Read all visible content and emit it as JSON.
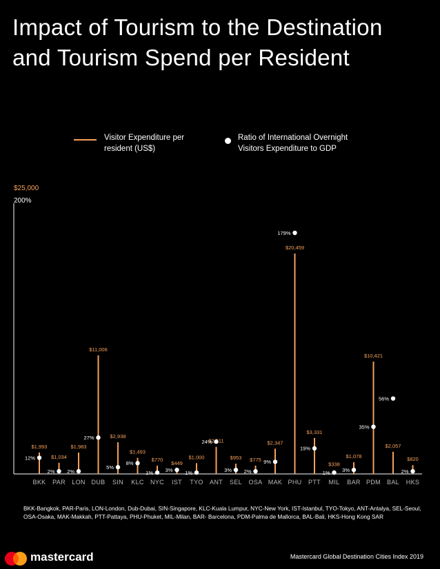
{
  "title": "Impact of Tourism to the Destination and Tourism Spend per Resident",
  "legend": {
    "line_label": "Visitor Expenditure per resident (US$)",
    "dot_label": "Ratio of International Overnight Visitors Expenditure to GDP"
  },
  "axis": {
    "money_max_label": "$25,000",
    "pct_max_label": "200%"
  },
  "colors": {
    "background": "#000000",
    "line": "#f7a15a",
    "dot": "#ffffff",
    "text": "#ffffff"
  },
  "chart_data": {
    "type": "bar",
    "title": "Impact of Tourism to the Destination and Tourism Spend per Resident",
    "categories": [
      "BKK",
      "PAR",
      "LON",
      "DUB",
      "SIN",
      "KLC",
      "NYC",
      "IST",
      "TYO",
      "ANT",
      "SEL",
      "OSA",
      "MAK",
      "PHU",
      "PTT",
      "MIL",
      "BAR",
      "PDM",
      "BAL",
      "HKS"
    ],
    "series": [
      {
        "name": "Visitor Expenditure per resident (US$)",
        "values": [
          1993,
          1034,
          1983,
          11006,
          2938,
          1493,
          770,
          449,
          1000,
          2511,
          953,
          775,
          2347,
          20459,
          3331,
          338,
          1078,
          10421,
          2057,
          820
        ],
        "labels": [
          "$1,993",
          "$1,034",
          "$1,983",
          "$11,006",
          "$2,938",
          "$1,493",
          "$770",
          "$449",
          "$1,000",
          "$2,511",
          "$953",
          "$775",
          "$2,347",
          "$20,459",
          "$3,331",
          "$338",
          "$1,078",
          "$10,421",
          "$2,057",
          "$820"
        ],
        "axis_max": 25000
      },
      {
        "name": "Ratio of International Overnight Visitors Expenditure to GDP",
        "values": [
          12,
          2,
          2,
          27,
          5,
          8,
          1,
          3,
          1,
          24,
          3,
          2,
          9,
          179,
          19,
          1,
          3,
          35,
          56,
          2
        ],
        "labels": [
          "12%",
          "2%",
          "2%",
          "27%",
          "5%",
          "8%",
          "1%",
          "3%",
          "1%",
          "24%",
          "3%",
          "2%",
          "9%",
          "179%",
          "19%",
          "1%",
          "3%",
          "35%",
          "56%",
          "2%"
        ],
        "axis_max": 200
      }
    ],
    "ylim_money": [
      0,
      25000
    ],
    "ylim_pct": [
      0,
      200
    ],
    "grid": false,
    "legend_position": "top"
  },
  "footnote": "BKK-Bangkok, PAR-Paris, LON-London, Dub-Dubai, SIN-Singapore, KLC-Kuala Lumpur, NYC-New York, IST-Istanbul, TYO-Tokyo, ANT-Antalya, SEL-Seoul, OSA-Osaka, MAK-Makkah, PTT-Pattaya, PHU-Phuket, MIL-Milan, BAR- Barcelona, PDM-Palma de Mallorca, BAL-Bali,  HKS-Hong Kong SAR",
  "footer": {
    "brand": "mastercard",
    "source": "Mastercard Global Destination Cities Index 2019"
  }
}
